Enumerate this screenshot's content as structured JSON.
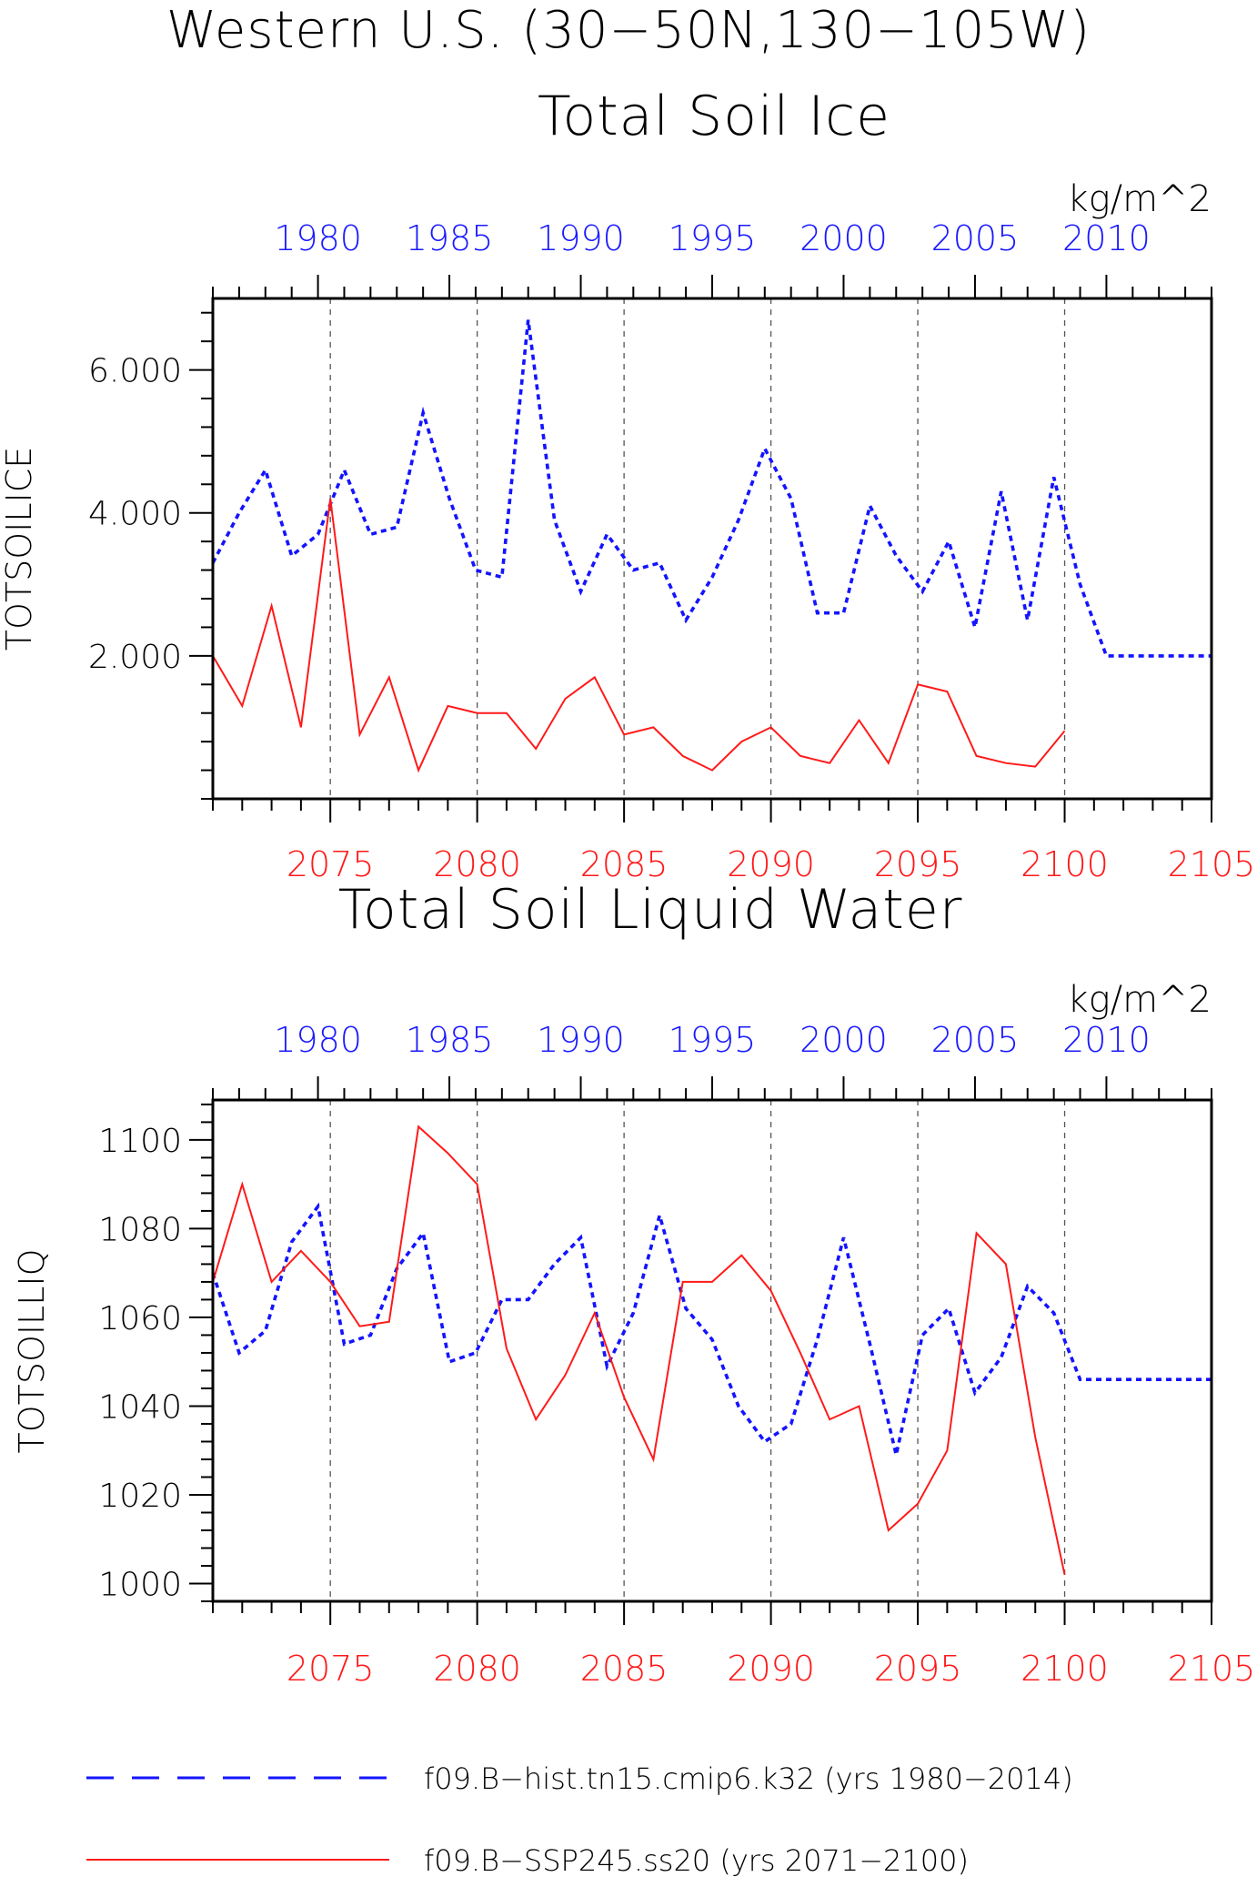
{
  "figure": {
    "title": "Western U.S. (30−50N,130−105W)",
    "colors": {
      "hist": "#1414ff",
      "ssp": "#ff1a1a",
      "axis": "#000000",
      "grid": "#555555"
    }
  },
  "chart_data": [
    {
      "type": "line",
      "title": "Total Soil Ice",
      "units": "kg/m^2",
      "ylabel": "TOTSOILICE",
      "ylim": [
        0,
        7.0
      ],
      "yticks": [
        2.0,
        4.0,
        6.0
      ],
      "ytick_labels": [
        "2.000",
        "4.000",
        "6.000"
      ],
      "top_axis": {
        "xlim": [
          1976,
          2014
        ],
        "ticks": [
          1980,
          1985,
          1990,
          1995,
          2000,
          2005,
          2010
        ],
        "labels": [
          "1980",
          "1985",
          "1990",
          "1995",
          "2000",
          "2005",
          "2010"
        ]
      },
      "bottom_axis": {
        "xlim": [
          2071,
          2105
        ],
        "ticks": [
          2075,
          2080,
          2085,
          2090,
          2095,
          2100,
          2105
        ],
        "labels": [
          "2075",
          "2080",
          "2085",
          "2090",
          "2095",
          "2100",
          "2105"
        ]
      },
      "grid": "vertical dashed at bottom-axis ticks",
      "series": [
        {
          "name": "f09.B−hist.tn15.cmip6.k32 (yrs 1980−2014)",
          "axis": "top",
          "color": "#1414ff",
          "style": "dashed",
          "x": [
            1976,
            1977,
            1978,
            1979,
            1980,
            1981,
            1982,
            1983,
            1984,
            1985,
            1986,
            1987,
            1988,
            1989,
            1990,
            1991,
            1992,
            1993,
            1994,
            1995,
            1996,
            1997,
            1998,
            1999,
            2000,
            2001,
            2002,
            2003,
            2004,
            2005,
            2006,
            2007,
            2008,
            2009,
            2010,
            2011,
            2012,
            2013,
            2014
          ],
          "y": [
            3.3,
            4.0,
            4.6,
            3.4,
            3.7,
            4.6,
            3.7,
            3.8,
            5.4,
            4.2,
            3.2,
            3.1,
            6.7,
            3.9,
            2.9,
            3.7,
            3.2,
            3.3,
            2.5,
            3.1,
            3.9,
            4.9,
            4.2,
            2.6,
            2.6,
            4.1,
            3.4,
            2.9,
            3.6,
            2.4,
            4.3,
            2.5,
            4.5,
            3.0,
            2.0,
            2.0,
            2.0,
            2.0,
            2.0
          ]
        },
        {
          "name": "f09.B−SSP245.ss20 (yrs 2071−2100)",
          "axis": "bottom",
          "color": "#ff1a1a",
          "style": "solid",
          "x": [
            2071,
            2072,
            2073,
            2074,
            2075,
            2076,
            2077,
            2078,
            2079,
            2080,
            2081,
            2082,
            2083,
            2084,
            2085,
            2086,
            2087,
            2088,
            2089,
            2090,
            2091,
            2092,
            2093,
            2094,
            2095,
            2096,
            2097,
            2098,
            2099,
            2100
          ],
          "y": [
            2.0,
            1.3,
            2.7,
            1.0,
            4.2,
            0.9,
            1.7,
            0.4,
            1.3,
            1.2,
            1.2,
            0.7,
            1.4,
            1.7,
            0.9,
            1.0,
            0.6,
            0.4,
            0.8,
            1.0,
            0.6,
            0.5,
            1.1,
            0.5,
            1.6,
            1.5,
            0.6,
            0.5,
            0.45,
            0.95
          ]
        }
      ]
    },
    {
      "type": "line",
      "title": "Total Soil Liquid Water",
      "units": "kg/m^2",
      "ylabel": "TOTSOILLIQ",
      "ylim": [
        996,
        1109
      ],
      "yticks": [
        1000,
        1020,
        1040,
        1060,
        1080,
        1100
      ],
      "ytick_labels": [
        "1000",
        "1020",
        "1040",
        "1060",
        "1080",
        "1100"
      ],
      "top_axis": {
        "xlim": [
          1976,
          2014
        ],
        "ticks": [
          1980,
          1985,
          1990,
          1995,
          2000,
          2005,
          2010
        ],
        "labels": [
          "1980",
          "1985",
          "1990",
          "1995",
          "2000",
          "2005",
          "2010"
        ]
      },
      "bottom_axis": {
        "xlim": [
          2071,
          2105
        ],
        "ticks": [
          2075,
          2080,
          2085,
          2090,
          2095,
          2100,
          2105
        ],
        "labels": [
          "2075",
          "2080",
          "2085",
          "2090",
          "2095",
          "2100",
          "2105"
        ]
      },
      "grid": "vertical dashed at bottom-axis ticks",
      "series": [
        {
          "name": "f09.B−hist.tn15.cmip6.k32 (yrs 1980−2014)",
          "axis": "top",
          "color": "#1414ff",
          "style": "dashed",
          "x": [
            1976,
            1977,
            1978,
            1979,
            1980,
            1981,
            1982,
            1983,
            1984,
            1985,
            1986,
            1987,
            1988,
            1989,
            1990,
            1991,
            1992,
            1993,
            1994,
            1995,
            1996,
            1997,
            1998,
            1999,
            2000,
            2001,
            2002,
            2003,
            2004,
            2005,
            2006,
            2007,
            2008,
            2009,
            2010,
            2011,
            2012,
            2013,
            2014
          ],
          "y": [
            1070,
            1052,
            1057,
            1077,
            1085,
            1054,
            1056,
            1071,
            1079,
            1050,
            1052,
            1064,
            1064,
            1072,
            1078,
            1049,
            1061,
            1083,
            1062,
            1055,
            1040,
            1032,
            1036,
            1055,
            1078,
            1054,
            1029,
            1056,
            1062,
            1043,
            1051,
            1067,
            1061,
            1046,
            1046,
            1046,
            1046,
            1046,
            1046
          ]
        },
        {
          "name": "f09.B−SSP245.ss20 (yrs 2071−2100)",
          "axis": "bottom",
          "color": "#ff1a1a",
          "style": "solid",
          "x": [
            2071,
            2072,
            2073,
            2074,
            2075,
            2076,
            2077,
            2078,
            2079,
            2080,
            2081,
            2082,
            2083,
            2084,
            2085,
            2086,
            2087,
            2088,
            2089,
            2090,
            2091,
            2092,
            2093,
            2094,
            2095,
            2096,
            2097,
            2098,
            2099,
            2100
          ],
          "y": [
            1068,
            1090,
            1068,
            1075,
            1068,
            1058,
            1059,
            1103,
            1097,
            1090,
            1053,
            1037,
            1047,
            1061,
            1042,
            1028,
            1068,
            1068,
            1074,
            1066,
            1052,
            1037,
            1040,
            1012,
            1018,
            1030,
            1079,
            1072,
            1033,
            1002
          ]
        }
      ]
    }
  ],
  "legend": {
    "items": [
      {
        "label": "f09.B−hist.tn15.cmip6.k32 (yrs 1980−2014)",
        "color": "#1414ff",
        "style": "dashed"
      },
      {
        "label": "f09.B−SSP245.ss20 (yrs 2071−2100)",
        "color": "#ff1a1a",
        "style": "solid"
      }
    ]
  }
}
